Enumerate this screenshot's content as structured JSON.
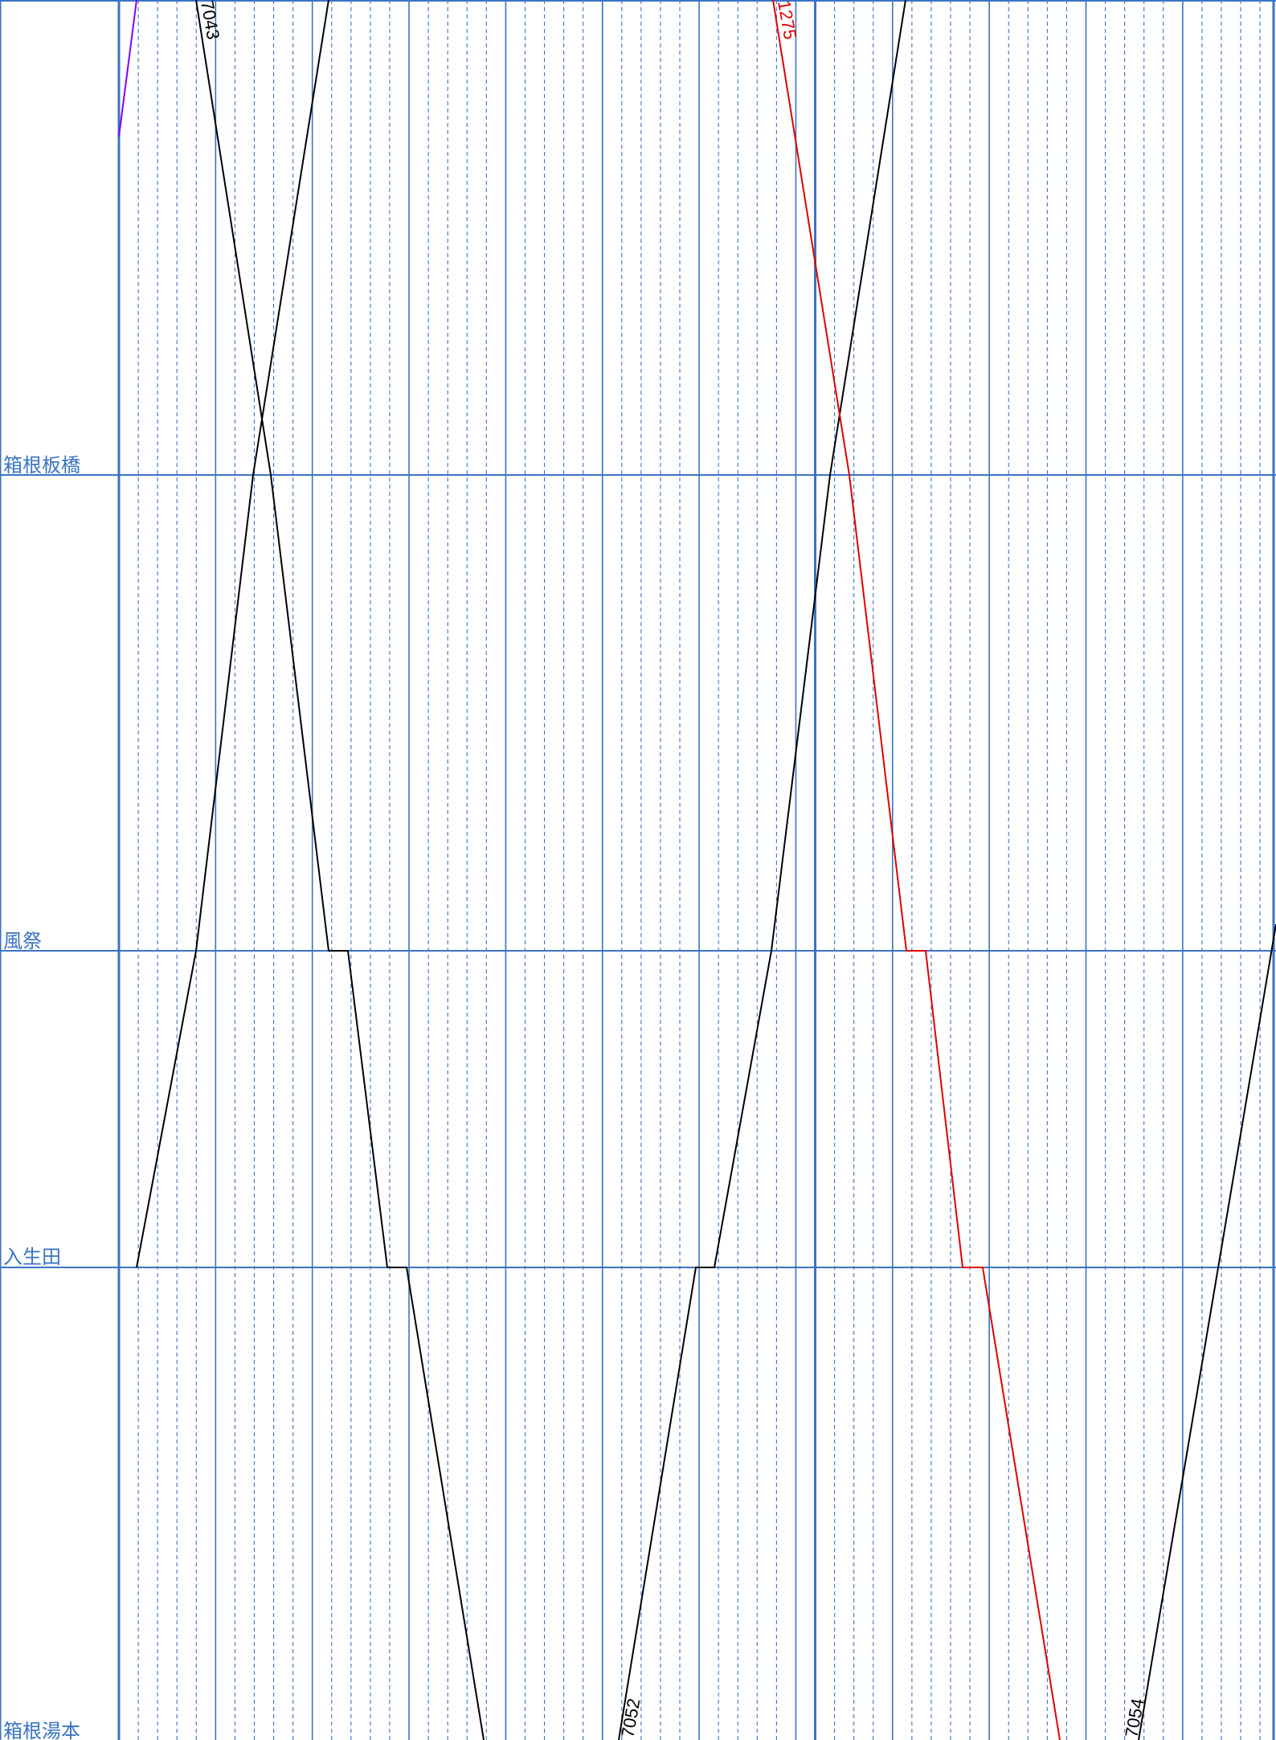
{
  "diagram": {
    "type": "train-timetable-diagram",
    "stations": [
      {
        "id": "hakone-itabashi",
        "name": "箱根板橋"
      },
      {
        "id": "kazamatsuri",
        "name": "風祭"
      },
      {
        "id": "iriuda",
        "name": "入生田"
      },
      {
        "id": "hakone-yumoto",
        "name": "箱根湯本"
      }
    ],
    "colors": {
      "grid": "#3a73c4",
      "station_label": "#3a73c4",
      "local_train": "#000000",
      "express_train": "#e00000",
      "other_train": "#8000ff"
    },
    "train_labels": {
      "t7043": "7043",
      "t1275": "1275",
      "t7052": "7052",
      "t7054": "7054"
    }
  }
}
